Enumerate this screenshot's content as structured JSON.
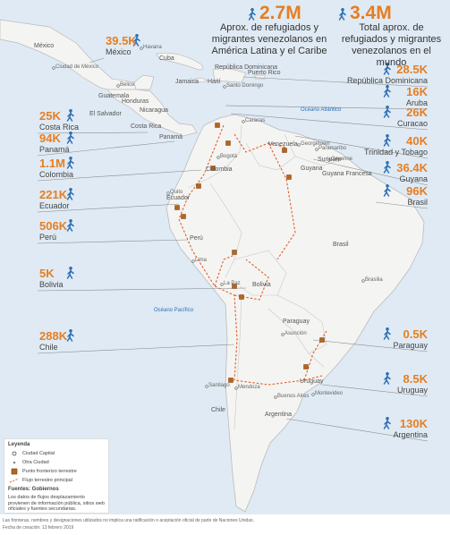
{
  "header": {
    "latam_total": "2.7M",
    "latam_label": "Aprox. de refugiados y migrantes venezolanos en América Latina y el Caribe",
    "world_total": "3.4M",
    "world_label": "Total aprox. de refugiados y migrantes venezolanos en el mundo"
  },
  "callouts": [
    {
      "value": "39.5K",
      "country": "México"
    },
    {
      "value": "25K",
      "country": "Costa Rica"
    },
    {
      "value": "94K",
      "country": "Panamá"
    },
    {
      "value": "1.1M",
      "country": "Colombia"
    },
    {
      "value": "221K",
      "country": "Ecuador"
    },
    {
      "value": "506K",
      "country": "Perú"
    },
    {
      "value": "5K",
      "country": "Bolivia"
    },
    {
      "value": "288K",
      "country": "Chile"
    },
    {
      "value": "28.5K",
      "country": "República Dominicana"
    },
    {
      "value": "16K",
      "country": "Aruba"
    },
    {
      "value": "26K",
      "country": "Curacao"
    },
    {
      "value": "40K",
      "country": "Trinidad y Tobago"
    },
    {
      "value": "36.4K",
      "country": "Guyana"
    },
    {
      "value": "96K",
      "country": "Brasil"
    },
    {
      "value": "0.5K",
      "country": "Paraguay"
    },
    {
      "value": "8.5K",
      "country": "Uruguay"
    },
    {
      "value": "130K",
      "country": "Argentina"
    }
  ],
  "map_labels": [
    "México",
    "Ciudad de México",
    "Havana",
    "Cuba",
    "Belice",
    "Guatemala",
    "Honduras",
    "El Salvador",
    "Nicaragua",
    "Costa Rica",
    "Panamá",
    "Jamaica",
    "Haití",
    "República Dominicana",
    "Puerto Rico",
    "Santo Domingo",
    "Caracas",
    "Venezuela",
    "Bogotá",
    "Colombia",
    "Quito",
    "Ecuador",
    "Georgetown",
    "Guyana",
    "Paramaribo",
    "Surinam",
    "Cayenne",
    "Guyana Francesa",
    "Perú",
    "Lima",
    "Brasil",
    "Brasilia",
    "La Paz",
    "Bolivia",
    "Paraguay",
    "Asunción",
    "Chile",
    "Santiago",
    "Mendoza",
    "Buenos Aires",
    "Uruguay",
    "Montevideo",
    "Argentina",
    "Océano Atlántico",
    "Océano Pacífico"
  ],
  "legend": {
    "title": "Leyenda",
    "items": [
      "Ciudad Capital",
      "Otra Ciudad",
      "Punto fronterizo terrestre",
      "Flujo terrestre principal"
    ],
    "sources": "Fuentes: Gobiernos",
    "note": "Los datos de flujos desplazamiento provienen de información pública, sitios web oficiales y fuentes secundarias."
  },
  "footer": {
    "disclaimer": "Las fronteras, nombres y designaciones utilizados no implica una ratificación o aceptación oficial de parte de Naciones Unidas.",
    "date": "Fecha de creación: 13 febrero 2019"
  }
}
